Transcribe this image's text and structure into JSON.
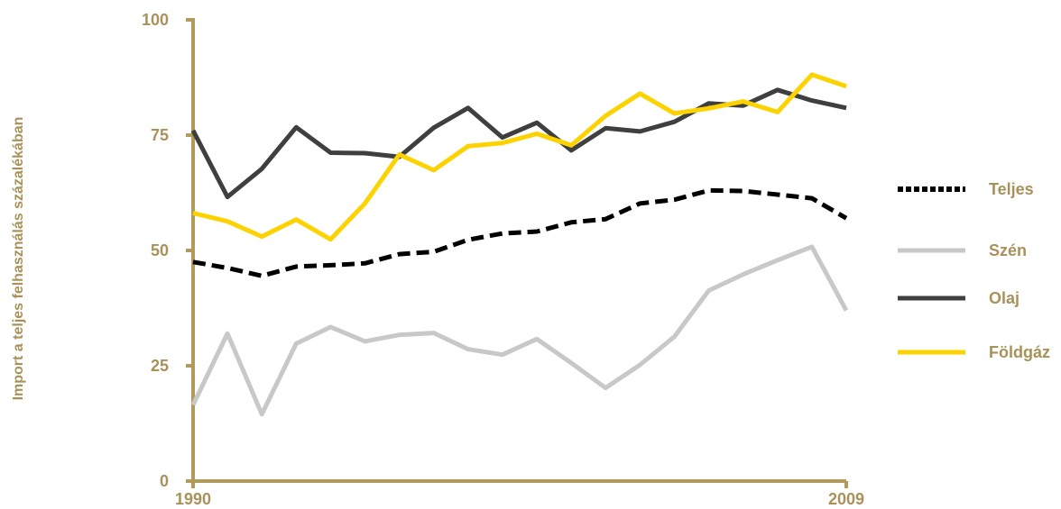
{
  "chart_data": {
    "type": "line",
    "title": "",
    "ylabel": "Import a teljes felhasználás százalékában",
    "xlabel": "",
    "x": [
      1990,
      1991,
      1992,
      1993,
      1994,
      1995,
      1996,
      1997,
      1998,
      1999,
      2000,
      2001,
      2002,
      2003,
      2004,
      2005,
      2006,
      2007,
      2008,
      2009
    ],
    "xtick_labels": [
      "1990",
      "2009"
    ],
    "yticks": [
      0,
      25,
      50,
      75,
      100
    ],
    "ylim": [
      0,
      100
    ],
    "xlim": [
      1990,
      2009
    ],
    "grid": false,
    "legend_position": "right",
    "series": [
      {
        "name": "Teljes",
        "style": "dotted-dashed",
        "color": "#000000",
        "values": [
          47.5,
          46.2,
          44.5,
          46.5,
          46.8,
          47.2,
          49.2,
          49.7,
          52.3,
          53.7,
          54.1,
          56.1,
          56.8,
          60.2,
          61.0,
          63.0,
          62.9,
          62.1,
          61.3,
          57.0
        ]
      },
      {
        "name": "Szén",
        "style": "solid",
        "color": "#c8c8c8",
        "values": [
          16.5,
          32.0,
          14.5,
          29.8,
          33.4,
          30.3,
          31.7,
          32.1,
          28.6,
          27.4,
          30.8,
          25.6,
          20.2,
          25.2,
          31.3,
          41.3,
          44.8,
          47.9,
          50.8,
          37.0
        ]
      },
      {
        "name": "Olaj",
        "style": "solid",
        "color": "#3f3f3f",
        "values": [
          76.0,
          61.6,
          67.7,
          76.7,
          71.2,
          71.1,
          70.3,
          76.6,
          80.9,
          74.5,
          77.7,
          71.7,
          76.5,
          75.8,
          77.9,
          81.9,
          81.4,
          84.8,
          82.5,
          80.9
        ]
      },
      {
        "name": "Földgáz",
        "style": "solid",
        "color": "#fcd200",
        "values": [
          58.1,
          56.3,
          53.0,
          56.7,
          52.4,
          60.2,
          70.8,
          67.4,
          72.6,
          73.3,
          75.3,
          72.8,
          79.2,
          84.0,
          79.7,
          80.8,
          82.3,
          80.0,
          88.1,
          85.6
        ]
      }
    ]
  },
  "colors": {
    "axis": "#b19a5b",
    "text": "#a8925a"
  }
}
